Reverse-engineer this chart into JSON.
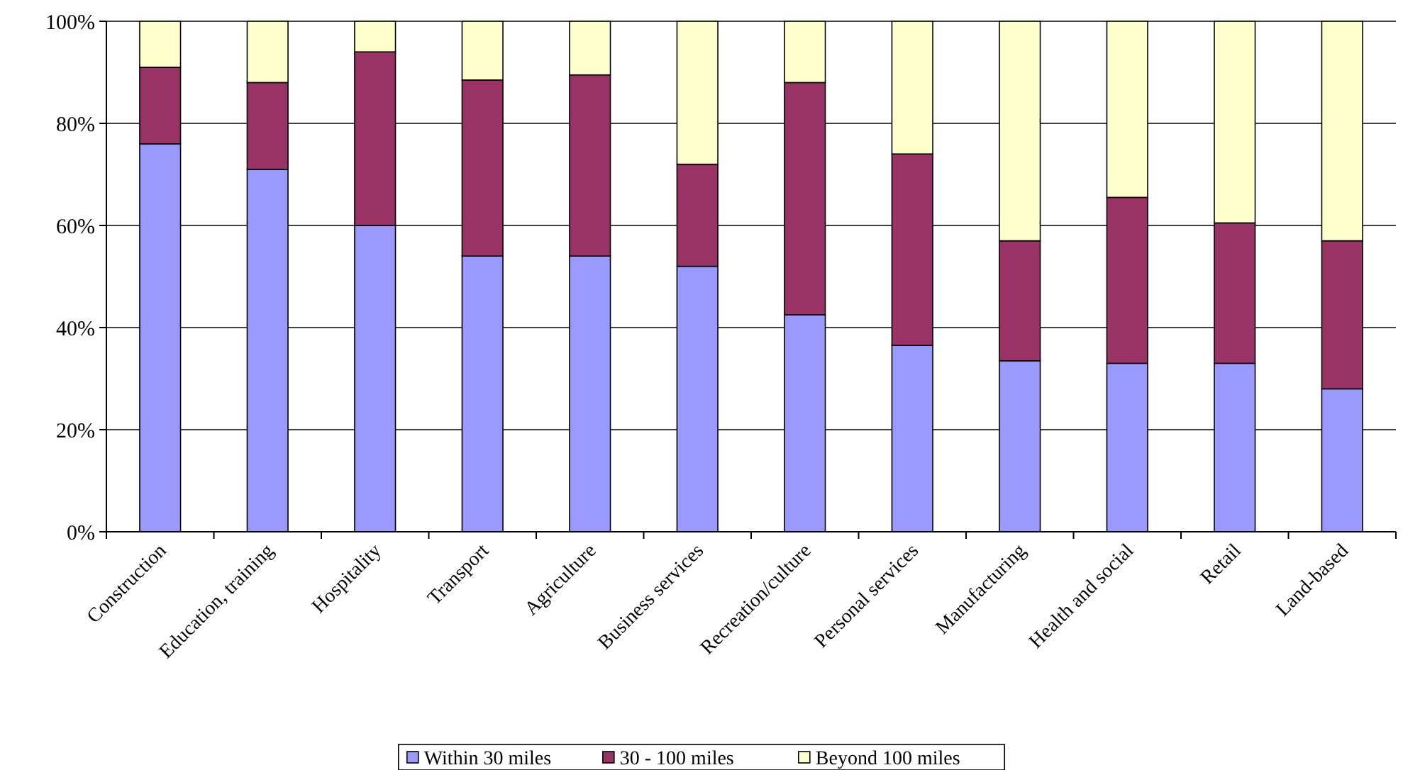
{
  "chart_data": {
    "type": "bar",
    "stacked": true,
    "categories": [
      "Construction",
      "Education, training",
      "Hospitality",
      "Transport",
      "Agriculture",
      "Business services",
      "Recreation/culture",
      "Personal services",
      "Manufacturing",
      "Health and social",
      "Retail",
      "Land-based"
    ],
    "series": [
      {
        "name": "Within 30 miles",
        "color": "#9999ff",
        "values": [
          76,
          71,
          60,
          54,
          54,
          52,
          42.5,
          36.5,
          33.5,
          33,
          33,
          28
        ]
      },
      {
        "name": "30 - 100  miles",
        "color": "#993366",
        "values": [
          15,
          17,
          34,
          34.5,
          35.5,
          20,
          45.5,
          37.5,
          23.5,
          32.5,
          27.5,
          29
        ]
      },
      {
        "name": "Beyond 100 miles",
        "color": "#ffffcc",
        "values": [
          9,
          12,
          6,
          11.5,
          10.5,
          28,
          12,
          26,
          43,
          34.5,
          39.5,
          43
        ]
      }
    ],
    "ylim": [
      0,
      100
    ],
    "yticks": [
      {
        "value": 0,
        "label": "0%"
      },
      {
        "value": 20,
        "label": "20%"
      },
      {
        "value": 40,
        "label": "40%"
      },
      {
        "value": 60,
        "label": "60%"
      },
      {
        "value": 80,
        "label": "80%"
      },
      {
        "value": 100,
        "label": "100%"
      }
    ],
    "grid": "y",
    "legend": "bottom"
  }
}
